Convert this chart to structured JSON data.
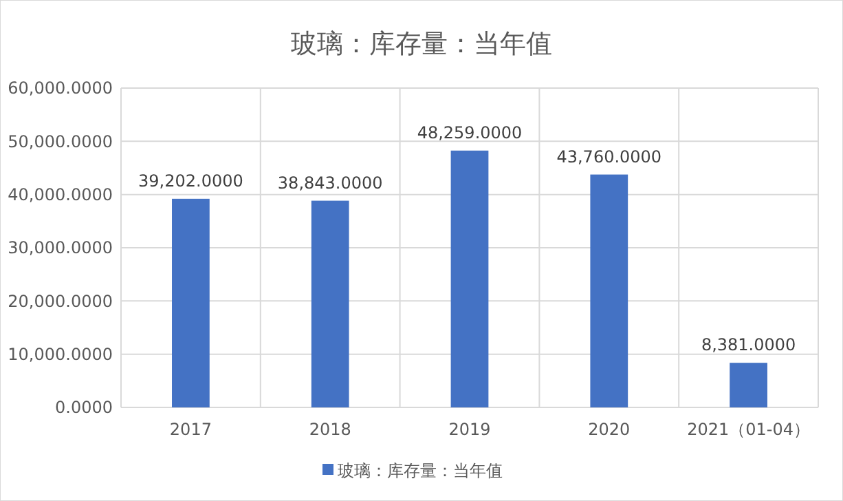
{
  "chart_data": {
    "type": "bar",
    "title": "玻璃：库存量：当年值",
    "categories": [
      "2017",
      "2018",
      "2019",
      "2020",
      "2021（01-04）"
    ],
    "series": [
      {
        "name": "玻璃：库存量：当年值",
        "color": "#4472c4",
        "values": [
          39202,
          38843,
          48259,
          43760,
          8381
        ],
        "value_labels": [
          "39,202.0000",
          "38,843.0000",
          "48,259.0000",
          "43,760.0000",
          "8,381.0000"
        ]
      }
    ],
    "ylim": [
      0,
      60000
    ],
    "yticks": [
      {
        "value": 0,
        "label": "0.0000"
      },
      {
        "value": 10000,
        "label": "10,000.0000"
      },
      {
        "value": 20000,
        "label": "20,000.0000"
      },
      {
        "value": 30000,
        "label": "30,000.0000"
      },
      {
        "value": 40000,
        "label": "40,000.0000"
      },
      {
        "value": 50000,
        "label": "50,000.0000"
      },
      {
        "value": 60000,
        "label": "60,000.0000"
      }
    ],
    "grid": true,
    "legend": "bottom"
  }
}
